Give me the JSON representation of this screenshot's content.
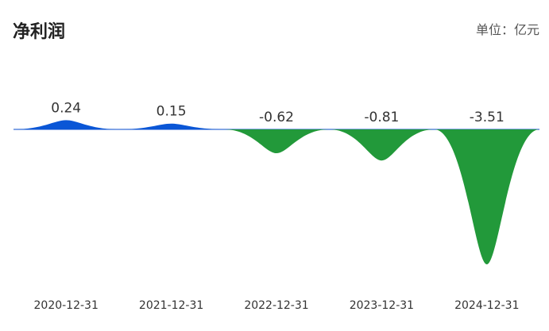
{
  "header": {
    "title": "净利润",
    "unit": "单位：亿元"
  },
  "colors": {
    "positive": "#0A56D6",
    "negative": "#22993A",
    "baseline": "#3A6FD8",
    "label": "#333333",
    "tick": "#333333"
  },
  "chart_data": {
    "type": "area",
    "categories": [
      "2020-12-31",
      "2021-12-31",
      "2022-12-31",
      "2023-12-31",
      "2024-12-31"
    ],
    "values": [
      0.24,
      0.15,
      -0.62,
      -0.81,
      -3.51
    ],
    "value_labels": [
      "0.24",
      "0.15",
      "-0.62",
      "-0.81",
      "-3.51"
    ],
    "title": "净利润",
    "unit": "单位：亿元",
    "xlabel": "",
    "ylabel": "",
    "grid": false,
    "legend": "none"
  }
}
